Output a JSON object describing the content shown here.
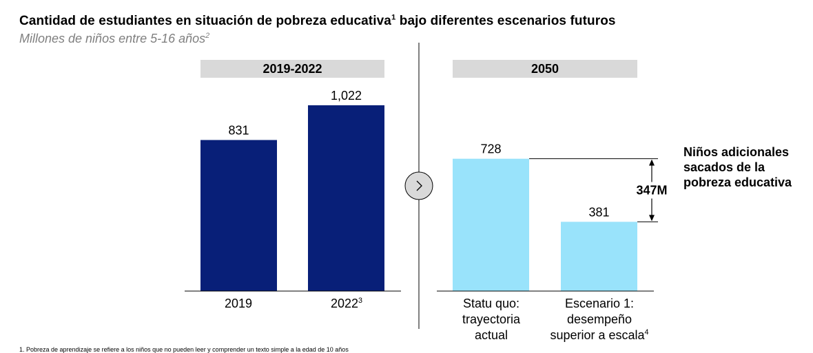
{
  "header": {
    "title": "Cantidad de estudiantes en situación de pobreza educativa",
    "title_sup": "1",
    "title_rest": " bajo diferentes escenarios futuros",
    "subtitle": "Millones de niños entre 5-16 años",
    "subtitle_sup": "2"
  },
  "panels": [
    {
      "label": "2019-2022"
    },
    {
      "label": "2050"
    }
  ],
  "arrow_icon": "chevron-right-icon",
  "chart_data": {
    "type": "bar",
    "groups": [
      {
        "label": "2019-2022",
        "categories": [
          "2019",
          "2022"
        ],
        "category_sup": [
          "",
          "3"
        ],
        "values": [
          831,
          1022
        ],
        "value_labels": [
          "831",
          "1,022"
        ],
        "color": "#081f78"
      },
      {
        "label": "2050",
        "categories": [
          "Statu quo: trayectoria actual",
          "Escenario 1: desempeño superior a escala"
        ],
        "category_sup": [
          "",
          "4"
        ],
        "values": [
          728,
          381
        ],
        "value_labels": [
          "728",
          "381"
        ],
        "color": "#99e3fb"
      }
    ],
    "ylim": [
      0,
      1100
    ],
    "grid": false,
    "difference": {
      "value": 347,
      "label": "347M"
    },
    "annotation": "Niños adicionales sacados de la pobreza educativa"
  },
  "labels": {
    "cat_2019": "2019",
    "cat_2022": "2022",
    "cat_2022_sup": "3",
    "cat_statu_1": "Statu quo:",
    "cat_statu_2": "trayectoria",
    "cat_statu_3": "actual",
    "cat_esc_1": "Escenario 1:",
    "cat_esc_2": "desempeño",
    "cat_esc_3": "superior a escala",
    "cat_esc_sup": "4",
    "annot_1": "Niños adicionales",
    "annot_2": "sacados de la",
    "annot_3": "pobreza educativa"
  },
  "footnote": "1. Pobreza de aprendizaje se refiere a los niños que no pueden leer y comprender un texto simple a la edad de 10 años"
}
